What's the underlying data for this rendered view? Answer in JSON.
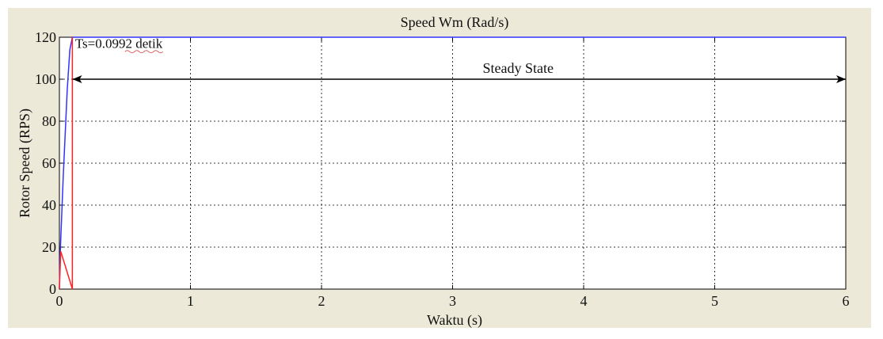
{
  "chart_data": {
    "type": "line",
    "title": "Speed Wm (Rad/s)",
    "xlabel": "Waktu (s)",
    "ylabel": "Rotor Speed (RPS)",
    "xlim": [
      0,
      6
    ],
    "ylim": [
      0,
      120
    ],
    "x_ticks": [
      0,
      1,
      2,
      3,
      4,
      5,
      6
    ],
    "y_ticks": [
      0,
      20,
      40,
      60,
      80,
      100,
      120
    ],
    "grid": true,
    "grid_style": "dotted",
    "series": [
      {
        "color": "#3333ff",
        "x": [
          0,
          0.005,
          0.03,
          0.06,
          0.08,
          0.0992,
          1,
          2,
          3,
          4,
          5,
          6
        ],
        "y": [
          0,
          15,
          55,
          95,
          114,
          120,
          120,
          120,
          120,
          120,
          120,
          120
        ]
      },
      {
        "color": "#ff2222",
        "x": [
          0,
          0.01,
          0.0992,
          0.0992,
          0.0992
        ],
        "y": [
          0,
          18,
          0,
          0,
          120
        ]
      }
    ],
    "annotations": [
      {
        "text": "Ts=0.0992 detik",
        "x": 0.12,
        "y": 115
      },
      {
        "text": "Steady State",
        "x": 3.5,
        "y": 103,
        "arrow_from_x": 0.1,
        "arrow_to_x": 6,
        "arrow_y": 100
      }
    ]
  },
  "colors": {
    "background": "#ece9d8",
    "plot_area": "#ffffff",
    "grid": "#000000"
  }
}
